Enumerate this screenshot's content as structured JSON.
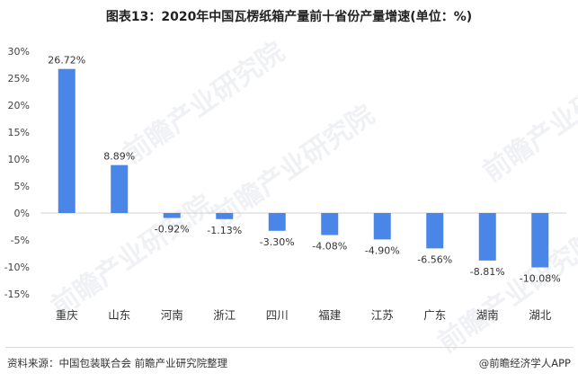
{
  "chart_data": {
    "type": "bar",
    "title": "图表13：2020年中国瓦楞纸箱产量前十省份产量增速(单位：%)",
    "categories": [
      "重庆",
      "山东",
      "河南",
      "浙江",
      "四川",
      "福建",
      "江苏",
      "广东",
      "湖南",
      "湖北"
    ],
    "values": [
      26.72,
      8.89,
      -0.92,
      -1.13,
      -3.3,
      -4.08,
      -4.9,
      -6.56,
      -8.81,
      -10.08
    ],
    "value_labels": [
      "26.72%",
      "8.89%",
      "-0.92%",
      "-1.13%",
      "-3.30%",
      "-4.08%",
      "-4.90%",
      "-6.56%",
      "-8.81%",
      "-10.08%"
    ],
    "y_ticks": [
      30,
      25,
      20,
      15,
      10,
      5,
      0,
      -5,
      -10,
      -15
    ],
    "y_tick_labels": [
      "30%",
      "25%",
      "20%",
      "15%",
      "10%",
      "5%",
      "0%",
      "-5%",
      "-10%",
      "-15%"
    ],
    "ylim": [
      -15,
      30
    ],
    "xlabel": "",
    "ylabel": "",
    "grid": false,
    "bar_color": "#4a86e8"
  },
  "footer": {
    "source": "资料来源：中国包装联合会 前瞻产业研究院整理",
    "brand": "@前瞻经济学人APP"
  },
  "watermark_text": "前瞻产业研究院"
}
